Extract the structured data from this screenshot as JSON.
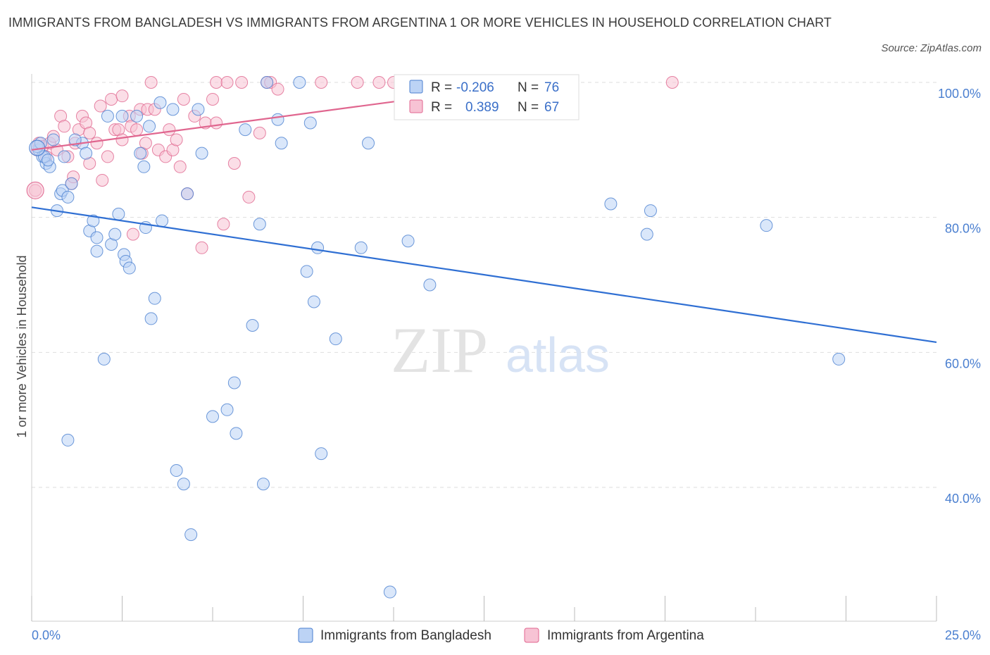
{
  "title": "IMMIGRANTS FROM BANGLADESH VS IMMIGRANTS FROM ARGENTINA 1 OR MORE VEHICLES IN HOUSEHOLD CORRELATION CHART",
  "source": "Source: ZipAtlas.com",
  "watermark": {
    "zip": "ZIP",
    "atlas": "atlas"
  },
  "colors": {
    "blue": "#4a7fd0",
    "blue_fill": "#bcd3f5",
    "pink": "#e0668f",
    "pink_fill": "#f7c3d4",
    "line_blue": "#2f6fd3",
    "line_pink": "#e0668f"
  },
  "stats": {
    "blue": {
      "r_label": "R =",
      "r": "-0.206",
      "n_label": "N =",
      "n": "76"
    },
    "pink": {
      "r_label": "R =",
      "r": "0.389",
      "n_label": "N =",
      "n": "67"
    }
  },
  "chart_data": {
    "type": "scatter",
    "ylabel": "1 or more Vehicles in Household",
    "x_tick_labels": [
      "0.0%",
      "25.0%"
    ],
    "y_tick_labels": [
      "100.0%",
      "80.0%",
      "60.0%",
      "40.0%"
    ],
    "xlim": [
      0,
      25
    ],
    "ylim": [
      20,
      101
    ],
    "legend_position": "bottom",
    "series": [
      {
        "name": "Immigrants from Bangladesh",
        "color": "#4a7fd0",
        "trend": {
          "x0": 0,
          "y0": 81.5,
          "x1": 25,
          "y1": 61.5
        },
        "points": [
          [
            0.2,
            90
          ],
          [
            0.3,
            89
          ],
          [
            0.4,
            88
          ],
          [
            0.5,
            87.5
          ],
          [
            0.6,
            91.5
          ],
          [
            0.7,
            81
          ],
          [
            0.8,
            83.5
          ],
          [
            0.85,
            84
          ],
          [
            0.9,
            89
          ],
          [
            1.0,
            83
          ],
          [
            1.1,
            85
          ],
          [
            1.4,
            91
          ],
          [
            1.5,
            89.5
          ],
          [
            1.6,
            78
          ],
          [
            1.7,
            79.5
          ],
          [
            1.8,
            75
          ],
          [
            1.8,
            77
          ],
          [
            2.1,
            95
          ],
          [
            2.2,
            76
          ],
          [
            2.3,
            77.5
          ],
          [
            2.4,
            80.5
          ],
          [
            2.5,
            95
          ],
          [
            2.55,
            74.5
          ],
          [
            2.6,
            73.5
          ],
          [
            2.7,
            72.5
          ],
          [
            2.9,
            95
          ],
          [
            3.0,
            89.5
          ],
          [
            3.1,
            87.5
          ],
          [
            3.15,
            78.5
          ],
          [
            3.25,
            93.5
          ],
          [
            3.3,
            65
          ],
          [
            3.4,
            68
          ],
          [
            3.55,
            97
          ],
          [
            3.6,
            79.5
          ],
          [
            3.9,
            96
          ],
          [
            4.0,
            42.5
          ],
          [
            4.2,
            40.5
          ],
          [
            4.3,
            83.5
          ],
          [
            4.4,
            33
          ],
          [
            4.6,
            96
          ],
          [
            4.7,
            89.5
          ],
          [
            5.0,
            50.5
          ],
          [
            5.4,
            51.5
          ],
          [
            5.6,
            55.5
          ],
          [
            5.65,
            48
          ],
          [
            5.9,
            93
          ],
          [
            6.1,
            64
          ],
          [
            6.3,
            79
          ],
          [
            6.4,
            40.5
          ],
          [
            6.5,
            100
          ],
          [
            6.8,
            94.5
          ],
          [
            6.9,
            91
          ],
          [
            7.4,
            100
          ],
          [
            7.6,
            72
          ],
          [
            7.7,
            94
          ],
          [
            7.8,
            67.5
          ],
          [
            7.9,
            75.5
          ],
          [
            8.0,
            45
          ],
          [
            8.4,
            62
          ],
          [
            9.1,
            75.5
          ],
          [
            9.3,
            91
          ],
          [
            9.9,
            24.5
          ],
          [
            10.4,
            76.5
          ],
          [
            11.0,
            70
          ],
          [
            1.0,
            47
          ],
          [
            2.0,
            59
          ],
          [
            16.0,
            82
          ],
          [
            17.0,
            77.5
          ],
          [
            17.1,
            81
          ],
          [
            20.3,
            78.8
          ],
          [
            22.3,
            59
          ],
          [
            0.15,
            90.5
          ],
          [
            0.25,
            91
          ],
          [
            0.35,
            89
          ],
          [
            0.45,
            88.5
          ],
          [
            1.2,
            91.5
          ]
        ]
      },
      {
        "name": "Immigrants from Argentina",
        "color": "#e0668f",
        "trend": {
          "x0": 0,
          "y0": 90.0,
          "x1": 14.0,
          "y1": 100.0
        },
        "points": [
          [
            0.1,
            84
          ],
          [
            0.15,
            90
          ],
          [
            0.2,
            91
          ],
          [
            0.3,
            90.5
          ],
          [
            0.4,
            89
          ],
          [
            0.5,
            91
          ],
          [
            0.6,
            92
          ],
          [
            0.7,
            90
          ],
          [
            0.8,
            95
          ],
          [
            0.9,
            93.5
          ],
          [
            1.0,
            89
          ],
          [
            1.1,
            85
          ],
          [
            1.15,
            86
          ],
          [
            1.2,
            91
          ],
          [
            1.3,
            93
          ],
          [
            1.4,
            95
          ],
          [
            1.5,
            94
          ],
          [
            1.6,
            92.5
          ],
          [
            1.6,
            88
          ],
          [
            1.8,
            91
          ],
          [
            1.9,
            96.5
          ],
          [
            1.95,
            85.5
          ],
          [
            2.1,
            89
          ],
          [
            2.2,
            97.5
          ],
          [
            2.3,
            93
          ],
          [
            2.4,
            93
          ],
          [
            2.5,
            91.5
          ],
          [
            2.5,
            98
          ],
          [
            2.7,
            95
          ],
          [
            2.75,
            93.5
          ],
          [
            2.8,
            77.5
          ],
          [
            2.9,
            93
          ],
          [
            3.0,
            96
          ],
          [
            3.05,
            89.5
          ],
          [
            3.15,
            91
          ],
          [
            3.2,
            96
          ],
          [
            3.3,
            100
          ],
          [
            3.4,
            96
          ],
          [
            3.5,
            90
          ],
          [
            3.7,
            89
          ],
          [
            3.8,
            93
          ],
          [
            3.9,
            90
          ],
          [
            4.0,
            91.5
          ],
          [
            4.1,
            87.5
          ],
          [
            4.2,
            97.5
          ],
          [
            4.3,
            83.5
          ],
          [
            4.5,
            95
          ],
          [
            4.7,
            75.5
          ],
          [
            4.8,
            94
          ],
          [
            5.0,
            97.5
          ],
          [
            5.1,
            94
          ],
          [
            5.1,
            100
          ],
          [
            5.3,
            79
          ],
          [
            5.4,
            100
          ],
          [
            5.6,
            88
          ],
          [
            5.8,
            100
          ],
          [
            6.0,
            83
          ],
          [
            6.3,
            92.5
          ],
          [
            6.5,
            100
          ],
          [
            6.6,
            100
          ],
          [
            6.8,
            99
          ],
          [
            8.0,
            100
          ],
          [
            9.0,
            100
          ],
          [
            9.6,
            100
          ],
          [
            10.0,
            100
          ],
          [
            11.0,
            97
          ],
          [
            17.7,
            100
          ]
        ]
      }
    ]
  }
}
